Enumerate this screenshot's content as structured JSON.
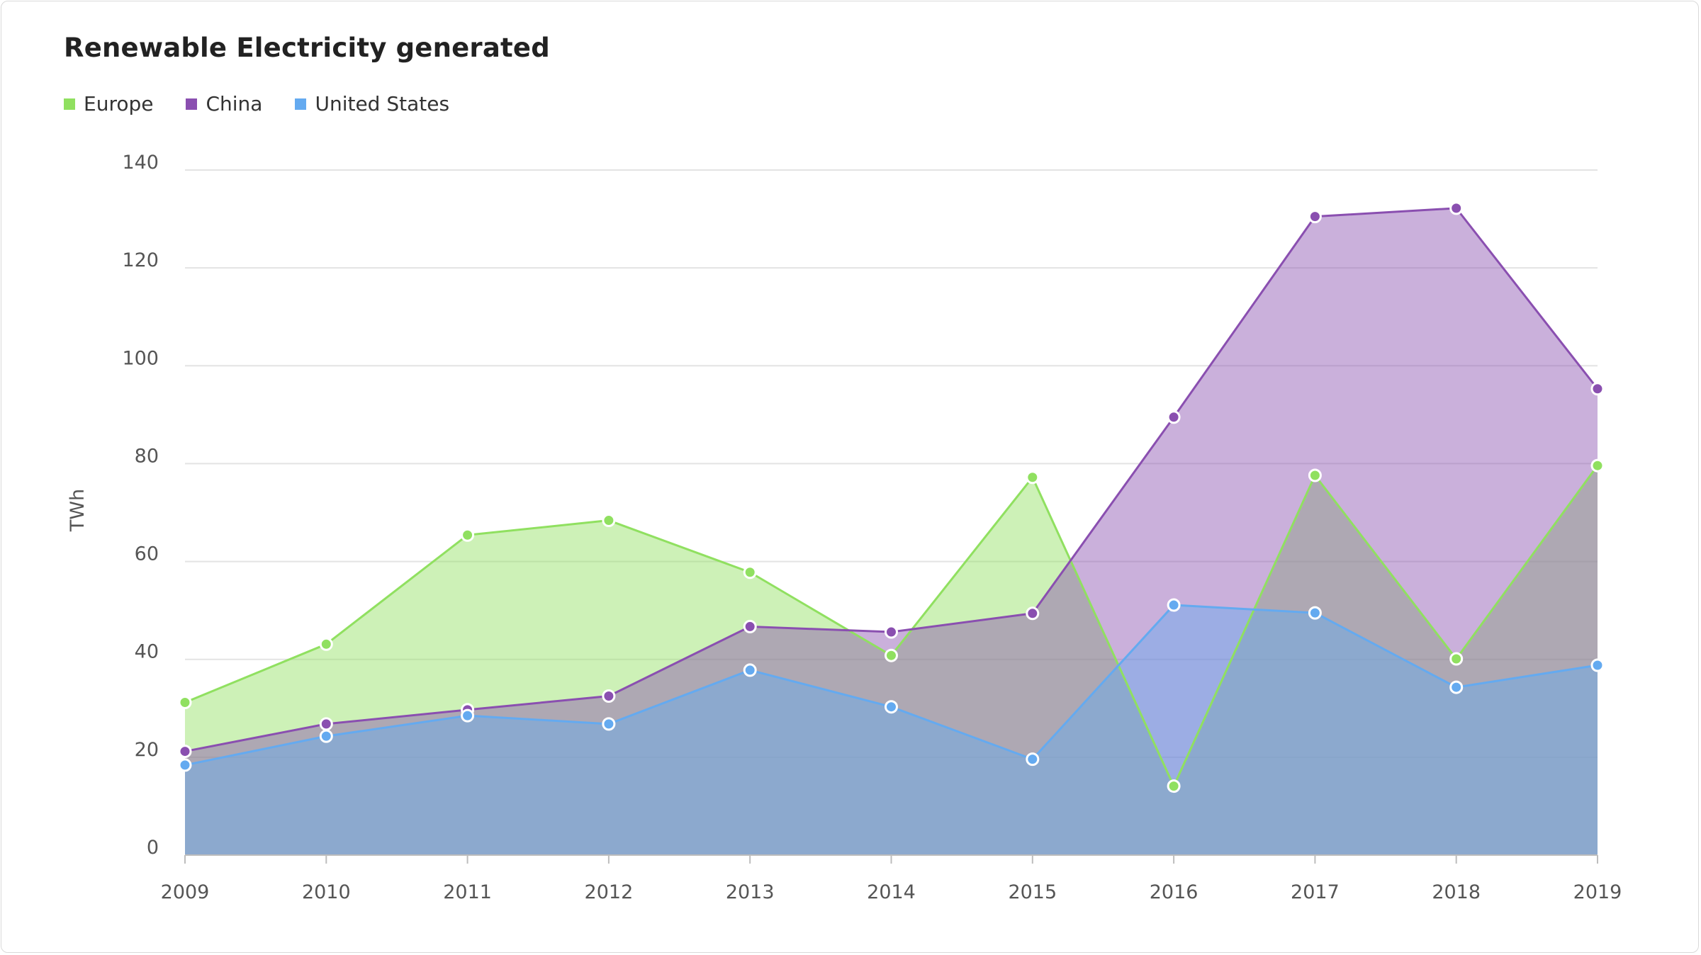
{
  "chart_data": {
    "type": "area",
    "title": "Renewable Electricity generated",
    "xlabel": "",
    "ylabel": "TWh",
    "ylim": [
      0,
      140
    ],
    "yticks": [
      0,
      20,
      40,
      60,
      80,
      100,
      120,
      140
    ],
    "grid": true,
    "legend_position": "top-left",
    "x": [
      "2009",
      "2010",
      "2011",
      "2012",
      "2013",
      "2014",
      "2015",
      "2016",
      "2017",
      "2018",
      "2019"
    ],
    "series": [
      {
        "name": "Europe",
        "color": "#90e060",
        "values": [
          31.2,
          43.1,
          65.4,
          68.4,
          57.8,
          40.8,
          77.2,
          14.1,
          77.6,
          40.1,
          79.6
        ]
      },
      {
        "name": "China",
        "color": "#8a4fb0",
        "values": [
          21.2,
          26.8,
          29.7,
          32.5,
          46.7,
          45.6,
          49.4,
          89.5,
          130.5,
          132.2,
          95.3
        ]
      },
      {
        "name": "United States",
        "color": "#64aaf0",
        "values": [
          18.4,
          24.3,
          28.5,
          26.8,
          37.8,
          30.3,
          19.6,
          51.1,
          49.5,
          34.3,
          38.8
        ]
      }
    ]
  }
}
